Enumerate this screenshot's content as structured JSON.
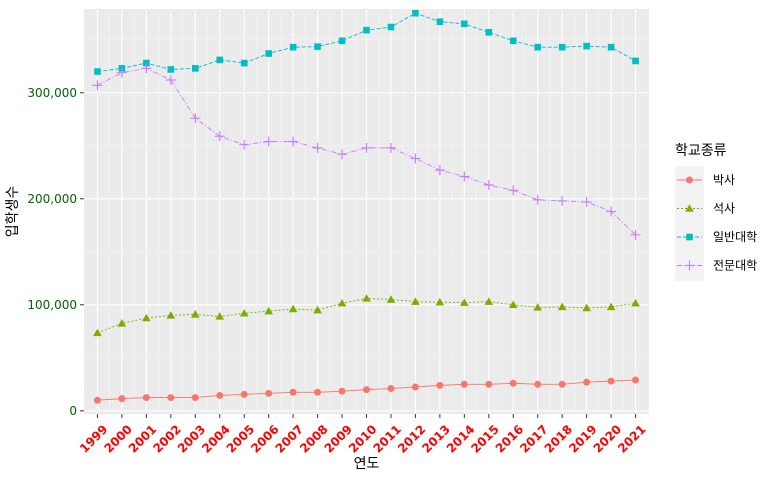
{
  "chart_data": {
    "type": "line",
    "xlabel": "연도",
    "ylabel": "입학생수",
    "ylim": [
      0,
      375000
    ],
    "yticks": [
      0,
      100000,
      200000,
      300000
    ],
    "ytick_labels": [
      "0",
      "100,000",
      "200,000",
      "300,000"
    ],
    "x": [
      "1999",
      "2000",
      "2001",
      "2002",
      "2003",
      "2004",
      "2005",
      "2006",
      "2007",
      "2008",
      "2009",
      "2010",
      "2011",
      "2012",
      "2013",
      "2014",
      "2015",
      "2016",
      "2017",
      "2018",
      "2019",
      "2020",
      "2021"
    ],
    "grid": true,
    "legend": {
      "title": "학교종류",
      "position": "right"
    },
    "series": [
      {
        "name": "박사",
        "color": "#F8766D",
        "marker": "circle",
        "values": [
          10000,
          11500,
          12500,
          12500,
          12500,
          14500,
          15500,
          16500,
          17500,
          17500,
          18500,
          20000,
          21000,
          22500,
          24000,
          25000,
          25000,
          26000,
          25000,
          25000,
          27000,
          28000,
          29000
        ]
      },
      {
        "name": "석사",
        "color": "#7CAE00",
        "marker": "triangle",
        "values": [
          73500,
          82500,
          87500,
          90000,
          91000,
          89000,
          92000,
          94000,
          96000,
          95000,
          101500,
          106000,
          105000,
          103000,
          102500,
          102000,
          103000,
          100000,
          97500,
          98000,
          97000,
          98000,
          101500
        ]
      },
      {
        "name": "일반대학",
        "color": "#00BFC4",
        "marker": "square",
        "values": [
          320000,
          323000,
          328000,
          322000,
          323000,
          331000,
          328000,
          337000,
          343000,
          343500,
          349000,
          359000,
          362000,
          375000,
          367000,
          365000,
          357000,
          349000,
          343000,
          343000,
          344000,
          343000,
          330000
        ]
      },
      {
        "name": "전문대학",
        "color": "#C77CFF",
        "marker": "plus",
        "values": [
          307000,
          319000,
          323000,
          312000,
          276000,
          259000,
          251000,
          254000,
          254000,
          248000,
          242000,
          248000,
          248000,
          238000,
          227000,
          221000,
          213000,
          208000,
          199000,
          198000,
          197000,
          188000,
          166000
        ]
      }
    ]
  }
}
